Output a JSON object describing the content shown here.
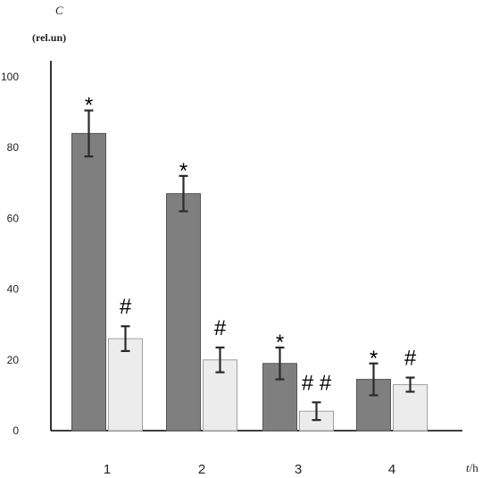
{
  "chart_data": {
    "type": "bar",
    "ylabel_symbol": "C",
    "ylabel_unit": "(rel.un)",
    "xlabel_symbol": "t",
    "xlabel_unit": "/h",
    "categories": [
      "1",
      "2",
      "3",
      "4"
    ],
    "ylim": [
      0,
      100
    ],
    "yticks": [
      0,
      20,
      40,
      60,
      80,
      100
    ],
    "grid": false,
    "series": [
      {
        "color": "#7f7f7f",
        "values": [
          84,
          67,
          19,
          14.5
        ],
        "errors": [
          6.5,
          5,
          4.5,
          4.5
        ],
        "markers": [
          "*",
          "*",
          "*",
          "*"
        ]
      },
      {
        "color": "#ececec",
        "values": [
          26,
          20,
          5.5,
          13
        ],
        "errors": [
          3.5,
          3.5,
          2.5,
          2
        ],
        "markers": [
          "#",
          "#",
          "# #",
          "#"
        ]
      }
    ]
  }
}
